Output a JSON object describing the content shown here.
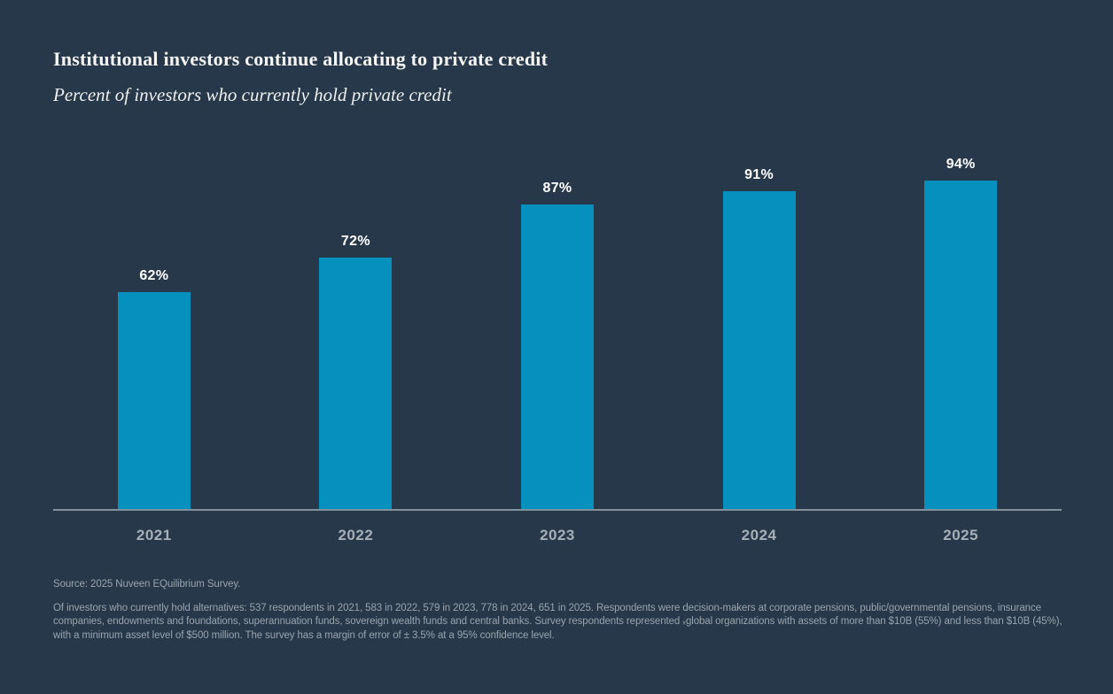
{
  "title": "Institutional investors continue allocating to private credit",
  "subtitle": "Percent of investors who currently hold private credit",
  "chart_data": {
    "type": "bar",
    "categories": [
      "2021",
      "2022",
      "2023",
      "2024",
      "2025"
    ],
    "values": [
      62,
      72,
      87,
      91,
      94
    ],
    "value_labels": [
      "62%",
      "72%",
      "87%",
      "91%",
      "94%"
    ],
    "title": "Institutional investors continue allocating to private credit",
    "subtitle": "Percent of investors who currently hold private credit",
    "xlabel": "",
    "ylabel": "",
    "ylim": [
      0,
      100
    ],
    "grid": false,
    "legend": false,
    "bar_color": "#0590BE"
  },
  "footer": {
    "source": "Source: 2025 Nuveen EQuilibrium Survey.",
    "note": "Of investors who currently hold alternatives: 537 respondents in 2021, 583 in 2022, 579 in 2023, 778 in 2024, 651 in 2025. Respondents were decision-makers at corporate pensions, public/governmental pensions, insurance companies, endowments and foundations, superannuation funds, sovereign wealth funds and central banks. Survey respondents represented ₓglobal organizations with assets of more than $10B (55%) and less than $10B (45%), with a minimum asset level of $500 million. The survey has a margin of error of ± 3.5% at a 95% confidence level."
  },
  "colors": {
    "background": "#26384A",
    "bar": "#0590BE",
    "axis_line": "#82909C",
    "title_text": "#F6F7F5",
    "tick_text": "#A6AFB6",
    "footnote_text": "#9AA4AE",
    "value_label_text": "#FFFFFF"
  }
}
